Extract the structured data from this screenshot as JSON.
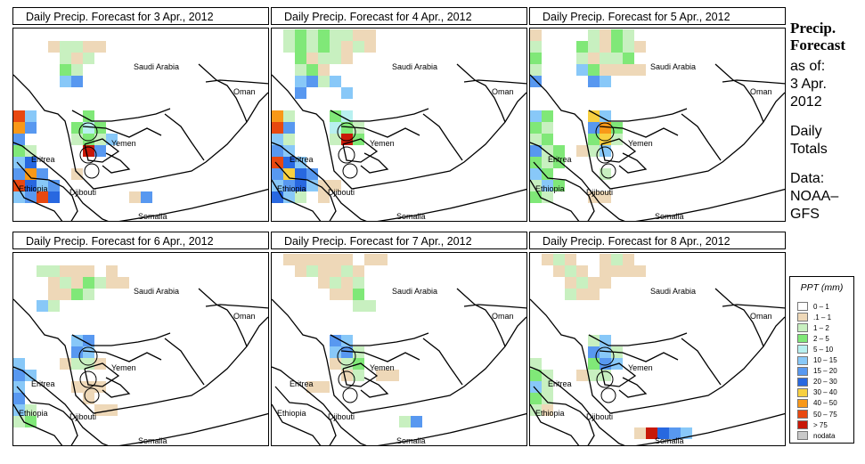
{
  "side": {
    "title_line1": "Precip.",
    "title_line2": "Forecast",
    "asof": "as of:",
    "date_line1": "3 Apr.",
    "date_line2": "2012",
    "totals_line1": "Daily",
    "totals_line2": "Totals",
    "data_line1": "Data:",
    "data_line2": "NOAA–",
    "data_line3": "GFS"
  },
  "panels": [
    {
      "title": "Daily Precip. Forecast for  3 Apr., 2012"
    },
    {
      "title": "Daily Precip. Forecast for  4 Apr., 2012"
    },
    {
      "title": "Daily Precip. Forecast for  5 Apr., 2012"
    },
    {
      "title": "Daily Precip. Forecast for  6 Apr., 2012"
    },
    {
      "title": "Daily Precip. Forecast for  7 Apr., 2012"
    },
    {
      "title": "Daily Precip. Forecast for  8 Apr., 2012"
    }
  ],
  "map_labels": {
    "saudi": "Saudi Arabia",
    "oman": "Oman",
    "yemen": "Yemen",
    "eritrea": "Eritrea",
    "ethiopia": "Ethiopia",
    "djibouti": "Djibouti",
    "somalia": "Somalia"
  },
  "legend": {
    "title": "PPT (mm)",
    "items": [
      {
        "label": "0 – 1",
        "color": "#ffffff"
      },
      {
        "label": ".1 – 1",
        "color": "#eed8b8"
      },
      {
        "label": "1 – 2",
        "color": "#c8f0c0"
      },
      {
        "label": "2 – 5",
        "color": "#80e878"
      },
      {
        "label": "5 – 10",
        "color": "#b8f0f0"
      },
      {
        "label": "10 – 15",
        "color": "#88c8f8"
      },
      {
        "label": "15 – 20",
        "color": "#5898f0"
      },
      {
        "label": "20 – 30",
        "color": "#2868e0"
      },
      {
        "label": "30 – 40",
        "color": "#f8d040"
      },
      {
        "label": "40 – 50",
        "color": "#f89818"
      },
      {
        "label": "50 – 75",
        "color": "#e84810"
      },
      {
        "label": "> 75",
        "color": "#c81808"
      },
      {
        "label": "nodata",
        "color": "#c8c8c8"
      }
    ]
  }
}
